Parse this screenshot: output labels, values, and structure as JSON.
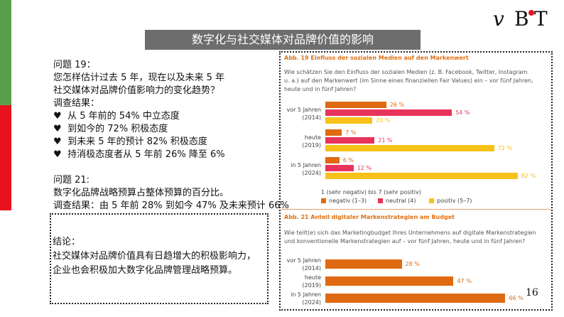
{
  "title": "数字化与社交媒体对品牌价值的影响",
  "logo_text": "vBT",
  "left": {
    "q19_label": "问题 19：",
    "q19_line1": "您怎样估计过去 5 年，现在以及未来 5 年",
    "q19_line2": "社交媒体对品牌价值影响力的变化趋势？",
    "survey_label": "调查结果：",
    "bullet_glyph": "♥",
    "bullets": [
      "从 5 年前的 54% 中立态度",
      "到如今的 72% 积极态度",
      "到未来 5 年的预计 82% 积极态度",
      "持消极态度者从 5 年前 26% 降至 6%"
    ],
    "q21_label": "问题 21:",
    "q21_line1": "数字化品牌战略预算占整体预算的百分比。",
    "q21_result": "调查结果：由 5 年前 28% 到如今 47% 及未来预计 66%"
  },
  "conclusion": {
    "label": "结论：",
    "line1": "社交媒体对品牌价值具有日趋增大的积极影响力，",
    "line2": "企业也会积极加大数字化品牌管理战略预算。"
  },
  "chart_data": [
    {
      "type": "bar",
      "orientation": "horizontal",
      "title": "Abb. 19  Einfluss der sozialen Medien auf den Markenwert",
      "question_line1": "Wie schätzen Sie den Einfluss der sozialen Medien (z. B. Facebook, Twitter, Instagram",
      "question_line2": "u. a.) auf den Markenwert (im Sinne eines finanziellen Fair Values) ein – vor fünf Jahren,",
      "question_line3": "heute und in fünf Jahren?",
      "categories": [
        {
          "line1": "vor 5 Jahren",
          "line2": "(2014)"
        },
        {
          "line1": "heute",
          "line2": "(2019)"
        },
        {
          "line1": "in 5 Jahren",
          "line2": "(2024)"
        }
      ],
      "series": [
        {
          "name": "negativ (1–3)",
          "color": "#e06a12",
          "values": [
            26,
            7,
            6
          ]
        },
        {
          "name": "neutral (4)",
          "color": "#e8335a",
          "values": [
            54,
            21,
            12
          ]
        },
        {
          "name": "positiv (5–7)",
          "color": "#f6c21a",
          "values": [
            20,
            72,
            82
          ]
        }
      ],
      "value_suffix": " %",
      "xlim": [
        0,
        100
      ],
      "scale_note": "1 (sehr negativ) bis 7 (sehr positiv)",
      "legend_position": "bottom"
    },
    {
      "type": "bar",
      "orientation": "horizontal",
      "title": "Abb. 21 Anteil digitaler Markenstrategien am Budget",
      "question_line1": "Wie teilt(e) sich das Marketingbudget Ihres Unternehmens auf digitale Markenstrategien",
      "question_line2": "und konventionelle Markenstrategien auf – vor fünf Jahren, heute und in fünf Jahren?",
      "categories": [
        {
          "line1": "vor 5 Jahren",
          "line2": "(2014)"
        },
        {
          "line1": "heute",
          "line2": "(2019)"
        },
        {
          "line1": "in 5 Jahren",
          "line2": "(2024)"
        }
      ],
      "series": [
        {
          "name": "",
          "color": "#e06a12",
          "values": [
            28,
            47,
            66
          ]
        }
      ],
      "value_suffix": " %",
      "xlim": [
        0,
        100
      ]
    }
  ],
  "page_number": "16",
  "colors": {
    "green_bar": "#5b9e4a",
    "red_bar": "#e8121f",
    "title_bg": "#6d6d6d",
    "abb_title": "#e07012"
  }
}
